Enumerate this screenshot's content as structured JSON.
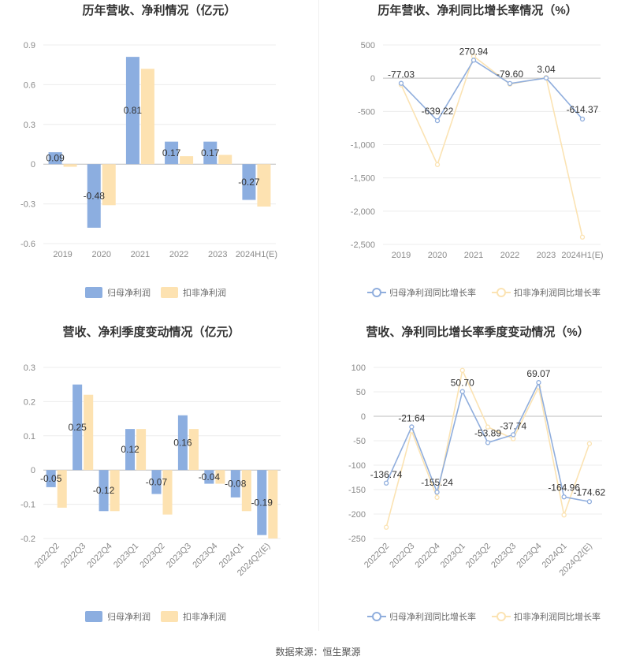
{
  "colors": {
    "blue": "#8caee0",
    "yellow": "#fde2b1",
    "line_blue": "#90aedd",
    "line_yellow": "#fbe3b3",
    "grid": "#ececec",
    "axis_text": "#8a8a8a",
    "title": "#333333"
  },
  "charts": [
    {
      "title": "历年营收、净利情况（亿元）",
      "legend": [
        "归母净利润",
        "扣非净利润"
      ],
      "chart_data": {
        "type": "bar",
        "categories": [
          "2019",
          "2020",
          "2021",
          "2022",
          "2023",
          "2024H1(E)"
        ],
        "yticks": [
          "0.9",
          "0.6",
          "0.3",
          "0",
          "-0.3",
          "-0.6"
        ],
        "ylim": [
          -0.6,
          0.9
        ],
        "series": [
          {
            "name": "归母净利润",
            "values": [
              0.09,
              -0.48,
              0.81,
              0.17,
              0.17,
              -0.27
            ],
            "labels": [
              "0.09",
              "-0.48",
              "0.81",
              "0.17",
              "0.17",
              "-0.27"
            ]
          },
          {
            "name": "扣非净利润",
            "values": [
              -0.02,
              -0.31,
              0.72,
              0.06,
              0.07,
              -0.32
            ]
          }
        ]
      }
    },
    {
      "title": "历年营收、净利同比增长率情况（%）",
      "legend": [
        "归母净利润同比增长率",
        "扣非净利润同比增长率"
      ],
      "chart_data": {
        "type": "line",
        "categories": [
          "2019",
          "2020",
          "2021",
          "2022",
          "2023",
          "2024H1(E)"
        ],
        "yticks": [
          "500",
          "0",
          "-500",
          "-1,000",
          "-1,500",
          "-2,000",
          "-2,500"
        ],
        "ylim": [
          -2500,
          500
        ],
        "series": [
          {
            "name": "归母净利润同比增长率",
            "values": [
              -77.03,
              -639.22,
              270.94,
              -79.6,
              3.04,
              -614.37
            ],
            "labels": [
              "-77.03",
              "-639.22",
              "270.94",
              "-79.60",
              "3.04",
              "-614.37"
            ]
          },
          {
            "name": "扣非净利润同比增长率",
            "values": [
              -100,
              -1300,
              330,
              -90,
              10,
              -2390
            ]
          }
        ]
      }
    },
    {
      "title": "营收、净利季度变动情况（亿元）",
      "legend": [
        "归母净利润",
        "扣非净利润"
      ],
      "chart_data": {
        "type": "bar",
        "categories": [
          "2022Q2",
          "2022Q3",
          "2022Q4",
          "2023Q1",
          "2023Q2",
          "2023Q3",
          "2023Q4",
          "2024Q1",
          "2024Q2(E)"
        ],
        "yticks": [
          "0.3",
          "0.2",
          "0.1",
          "0",
          "-0.1",
          "-0.2"
        ],
        "ylim": [
          -0.2,
          0.3
        ],
        "series": [
          {
            "name": "归母净利润",
            "values": [
              -0.05,
              0.25,
              -0.12,
              0.12,
              -0.07,
              0.16,
              -0.04,
              -0.08,
              -0.19
            ],
            "labels": [
              "-0.05",
              "0.25",
              "-0.12",
              "0.12",
              "-0.07",
              "0.16",
              "-0.04",
              "-0.08",
              "-0.19"
            ]
          },
          {
            "name": "扣非净利润",
            "values": [
              -0.11,
              0.22,
              -0.12,
              0.12,
              -0.13,
              0.12,
              -0.04,
              -0.12,
              -0.2
            ]
          }
        ]
      }
    },
    {
      "title": "营收、净利同比增长率季度变动情况（%）",
      "legend": [
        "归母净利润同比增长率",
        "扣非净利润同比增长率"
      ],
      "chart_data": {
        "type": "line",
        "categories": [
          "2022Q2",
          "2022Q3",
          "2022Q4",
          "2023Q1",
          "2023Q2",
          "2023Q3",
          "2023Q4",
          "2024Q1",
          "2024Q2(E)"
        ],
        "yticks": [
          "100",
          "50",
          "0",
          "-50",
          "-100",
          "-150",
          "-200",
          "-250"
        ],
        "ylim": [
          -250,
          100
        ],
        "series": [
          {
            "name": "归母净利润同比增长率",
            "values": [
              -136.74,
              -21.64,
              -155.24,
              50.7,
              -53.89,
              -37.74,
              69.07,
              -164.96,
              -174.62
            ],
            "labels": [
              "-136.74",
              "-21.64",
              "-155.24",
              "50.70",
              "-53.89",
              "-37.74",
              "69.07",
              "-164.96",
              "-174.62"
            ]
          },
          {
            "name": "扣非净利润同比增长率",
            "values": [
              -227,
              -30,
              -166,
              94,
              -22,
              -46,
              60,
              -202,
              -56
            ]
          }
        ]
      }
    }
  ],
  "source": "数据来源：恒生聚源"
}
